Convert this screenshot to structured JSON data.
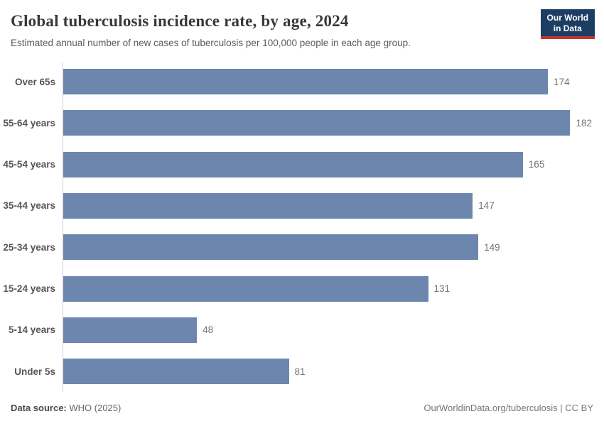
{
  "header": {
    "title": "Global tuberculosis incidence rate, by age, 2024",
    "subtitle": "Estimated annual number of new cases of tuberculosis per 100,000 people in each age group.",
    "logo": {
      "line1": "Our World",
      "line2": "in Data"
    }
  },
  "chart_data": {
    "type": "bar",
    "orientation": "horizontal",
    "title": "Global tuberculosis incidence rate, by age, 2024",
    "subtitle": "Estimated annual number of new cases of tuberculosis per 100,000 people in each age group.",
    "categories": [
      "Over 65s",
      "55-64 years",
      "45-54 years",
      "35-44 years",
      "25-34 years",
      "15-24 years",
      "5-14 years",
      "Under 5s"
    ],
    "values": [
      174,
      182,
      165,
      147,
      149,
      131,
      48,
      81
    ],
    "xlabel": "",
    "ylabel": "",
    "xlim": [
      0,
      190
    ],
    "grid": false,
    "legend": "none",
    "value_labels_shown": true,
    "bar_color": "#6d86ad"
  },
  "footer": {
    "source_label": "Data source:",
    "source_value": "WHO (2025)",
    "license": "OurWorldinData.org/tuberculosis | CC BY"
  },
  "colors": {
    "bar": "#6d86ad",
    "logo_background": "#1d3d63",
    "logo_accent": "#c0362f",
    "axis_line": "#cfcfcf",
    "title_text": "#383838"
  }
}
